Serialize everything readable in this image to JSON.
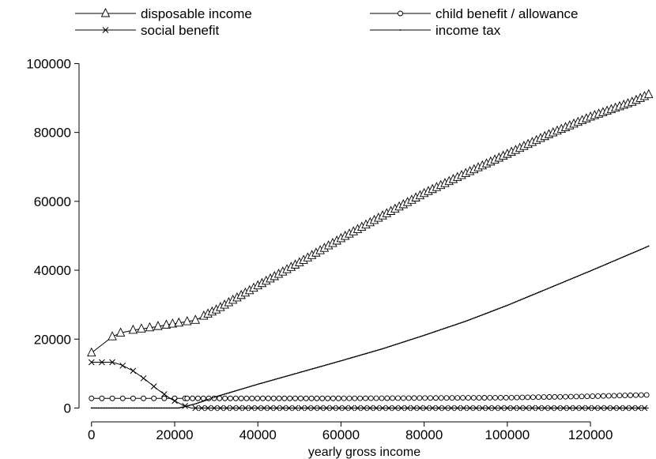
{
  "chart_data": {
    "type": "line",
    "xlabel": "yearly gross income",
    "ylabel": "",
    "xlim": [
      -3000,
      135000
    ],
    "ylim": [
      -1500,
      104000
    ],
    "xticks": [
      0,
      20000,
      40000,
      60000,
      80000,
      100000,
      120000
    ],
    "yticks": [
      0,
      20000,
      40000,
      60000,
      80000,
      100000
    ],
    "xtick_labels": [
      "0",
      "20000",
      "40000",
      "60000",
      "80000",
      "100000",
      "120000"
    ],
    "ytick_labels": [
      "0",
      "20000",
      "40000",
      "60000",
      "80000",
      "100000"
    ],
    "legend_position": "top",
    "series": [
      {
        "name": "disposable income",
        "marker": "triangle",
        "x": [
          0,
          5000,
          7000,
          10000,
          15000,
          20000,
          25000,
          30000,
          40000,
          50000,
          60000,
          70000,
          80000,
          90000,
          100000,
          110000,
          120000,
          130000,
          134000
        ],
        "values": [
          16000,
          20700,
          21800,
          22600,
          23500,
          24500,
          25500,
          28500,
          35500,
          42200,
          49200,
          55800,
          62300,
          68100,
          73700,
          79400,
          84500,
          88800,
          91000
        ]
      },
      {
        "name": "child benefit / allowance",
        "marker": "circle",
        "x": [
          0,
          20000,
          40000,
          60000,
          80000,
          100000,
          110000,
          120000,
          130000,
          134000
        ],
        "values": [
          2800,
          2800,
          2800,
          2800,
          2900,
          3000,
          3200,
          3400,
          3700,
          3800
        ]
      },
      {
        "name": "social benefit",
        "marker": "x",
        "x": [
          0,
          5000,
          7000,
          10000,
          13000,
          16000,
          19000,
          22000,
          24000,
          134000
        ],
        "values": [
          13300,
          13300,
          12600,
          10800,
          8200,
          5300,
          2700,
          800,
          0,
          0
        ]
      },
      {
        "name": "income tax",
        "marker": "dot",
        "x": [
          0,
          21000,
          25000,
          30000,
          40000,
          50000,
          60000,
          70000,
          80000,
          90000,
          100000,
          110000,
          120000,
          134000
        ],
        "values": [
          0,
          0,
          1200,
          3300,
          6900,
          10300,
          13700,
          17200,
          21100,
          25200,
          29800,
          34800,
          39800,
          47000
        ]
      }
    ]
  }
}
